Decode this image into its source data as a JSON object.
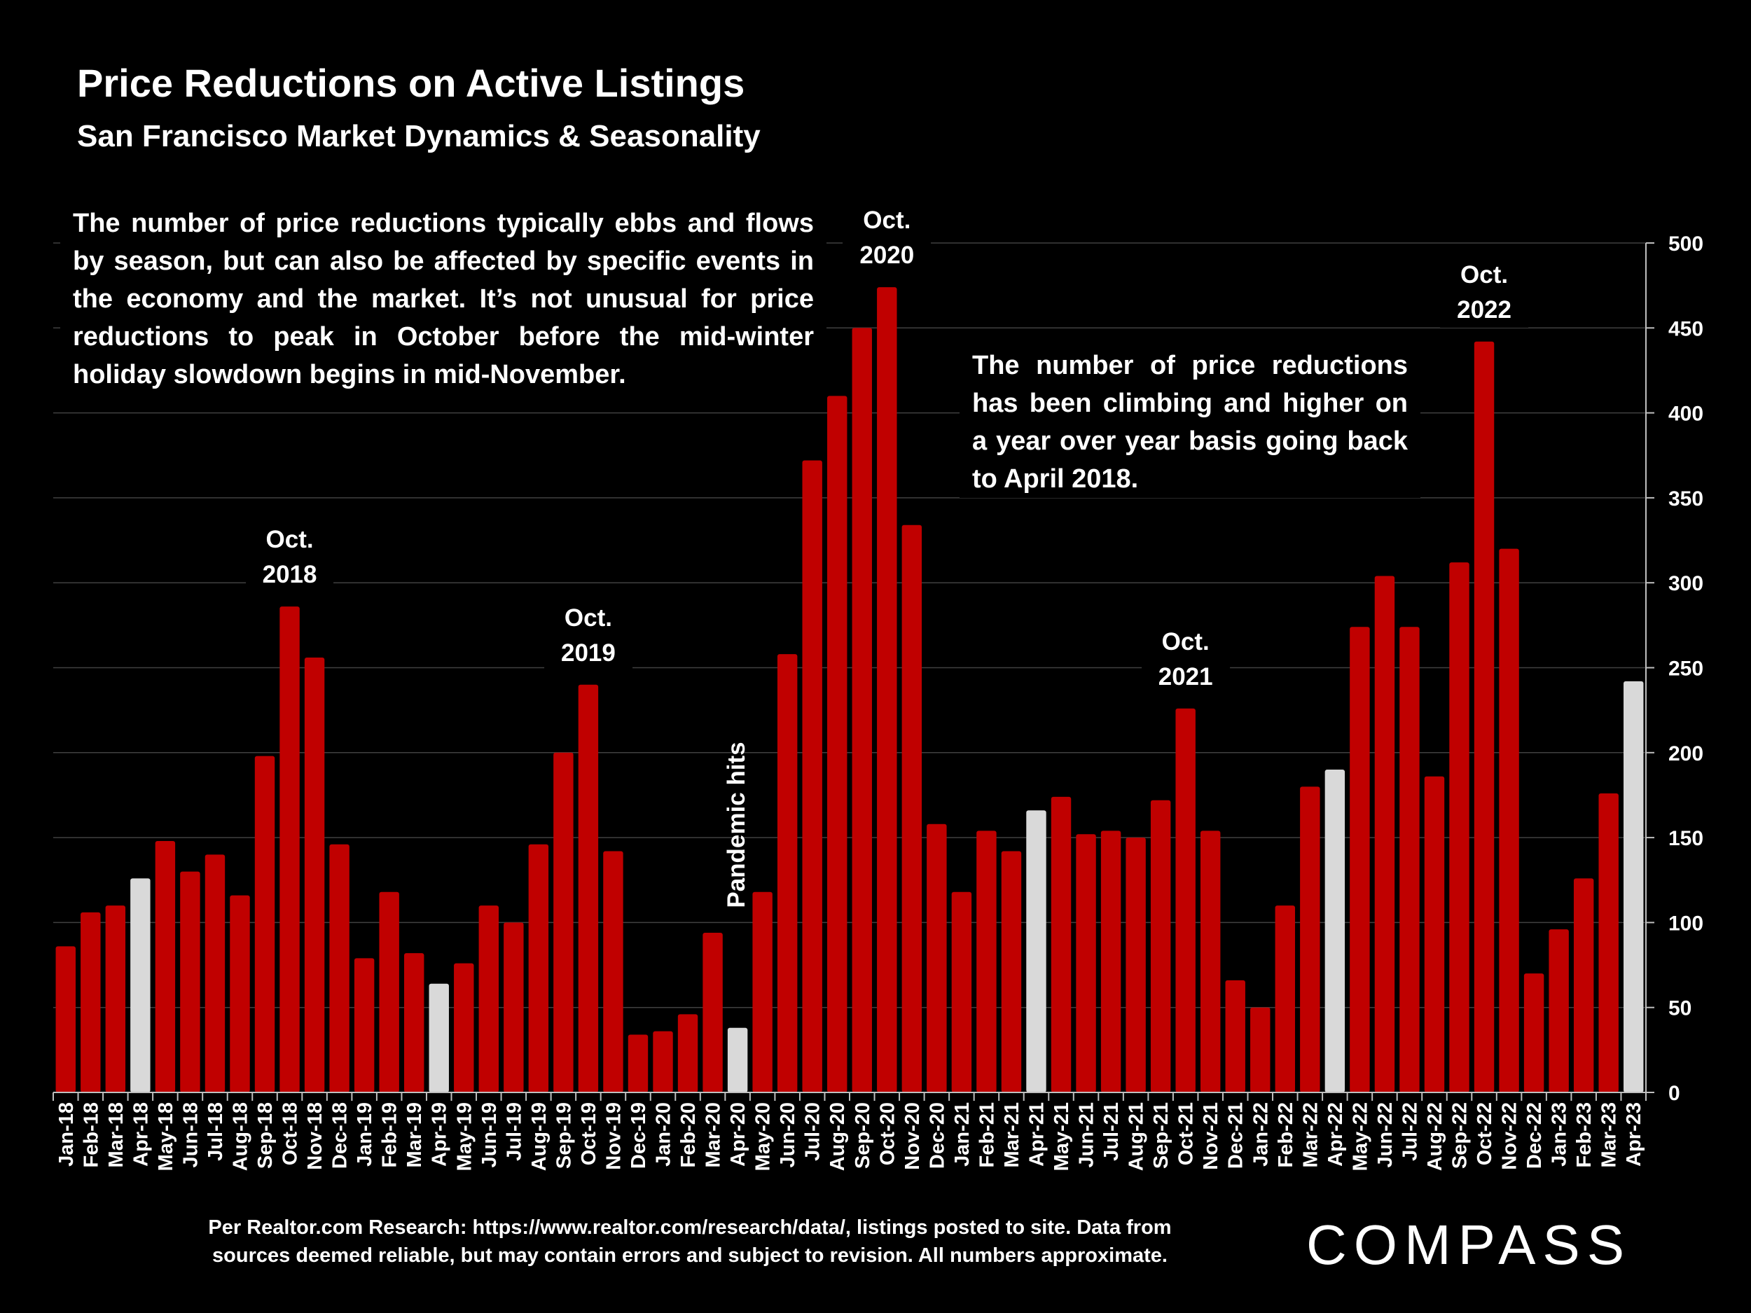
{
  "header": {
    "title": "Price Reductions on Active Listings",
    "subtitle": "San Francisco Market Dynamics & Seasonality"
  },
  "annotations": {
    "note1": "The number of price reductions typically ebbs and flows by season, but can also be affected by specific events in the economy and the market. It’s not unusual for price reductions to peak in October before the mid-winter holiday slowdown begins in mid-November.",
    "note2": "The number of price reductions has been climbing and higher on a year over year basis going back to April 2018.",
    "peaks": [
      {
        "line1": "Oct.",
        "line2": "2018",
        "category": "Oct-18"
      },
      {
        "line1": "Oct.",
        "line2": "2019",
        "category": "Oct-19"
      },
      {
        "line1": "Oct.",
        "line2": "2020",
        "category": "Oct-20"
      },
      {
        "line1": "Oct.",
        "line2": "2021",
        "category": "Oct-21"
      },
      {
        "line1": "Oct.",
        "line2": "2022",
        "category": "Oct-22"
      }
    ],
    "pandemic": "Pandemic hits"
  },
  "footer": {
    "source_line1": "Per Realtor.com Research:  https://www.realtor.com/research/data/, listings posted to site. Data from",
    "source_line2": "sources deemed reliable, but may contain errors and subject to revision. All numbers approximate.",
    "logo": "COMPASS"
  },
  "colors": {
    "background": "#000000",
    "bar": "#c00000",
    "highlight_bar": "#d9d9d9",
    "grid": "#404040",
    "text": "#ffffff"
  },
  "chart_data": {
    "type": "bar",
    "title": "Price Reductions on Active Listings",
    "subtitle": "San Francisco Market Dynamics & Seasonality",
    "categories": [
      "Jan-18",
      "Feb-18",
      "Mar-18",
      "Apr-18",
      "May-18",
      "Jun-18",
      "Jul-18",
      "Aug-18",
      "Sep-18",
      "Oct-18",
      "Nov-18",
      "Dec-18",
      "Jan-19",
      "Feb-19",
      "Mar-19",
      "Apr-19",
      "May-19",
      "Jun-19",
      "Jul-19",
      "Aug-19",
      "Sep-19",
      "Oct-19",
      "Nov-19",
      "Dec-19",
      "Jan-20",
      "Feb-20",
      "Mar-20",
      "Apr-20",
      "May-20",
      "Jun-20",
      "Jul-20",
      "Aug-20",
      "Sep-20",
      "Oct-20",
      "Nov-20",
      "Dec-20",
      "Jan-21",
      "Feb-21",
      "Mar-21",
      "Apr-21",
      "May-21",
      "Jun-21",
      "Jul-21",
      "Aug-21",
      "Sep-21",
      "Oct-21",
      "Nov-21",
      "Dec-21",
      "Jan-22",
      "Feb-22",
      "Mar-22",
      "Apr-22",
      "May-22",
      "Jun-22",
      "Jul-22",
      "Aug-22",
      "Sep-22",
      "Oct-22",
      "Nov-22",
      "Dec-22",
      "Jan-23",
      "Feb-23",
      "Mar-23",
      "Apr-23"
    ],
    "values": [
      86,
      106,
      110,
      126,
      148,
      130,
      140,
      116,
      198,
      286,
      256,
      146,
      79,
      118,
      82,
      64,
      76,
      110,
      100,
      146,
      200,
      240,
      142,
      34,
      36,
      46,
      94,
      38,
      118,
      258,
      372,
      410,
      450,
      474,
      334,
      158,
      118,
      154,
      142,
      166,
      174,
      152,
      154,
      150,
      172,
      226,
      154,
      66,
      50,
      110,
      180,
      190,
      274,
      304,
      274,
      186,
      312,
      442,
      320,
      70,
      96,
      126,
      176,
      242
    ],
    "highlighted": [
      "Apr-18",
      "Apr-19",
      "Apr-20",
      "Apr-21",
      "Apr-22",
      "Apr-23"
    ],
    "ylim": [
      0,
      500
    ],
    "yticks": [
      0,
      50,
      100,
      150,
      200,
      250,
      300,
      350,
      400,
      450,
      500
    ],
    "yaxis_position": "right",
    "grid": true,
    "legend": "none"
  }
}
